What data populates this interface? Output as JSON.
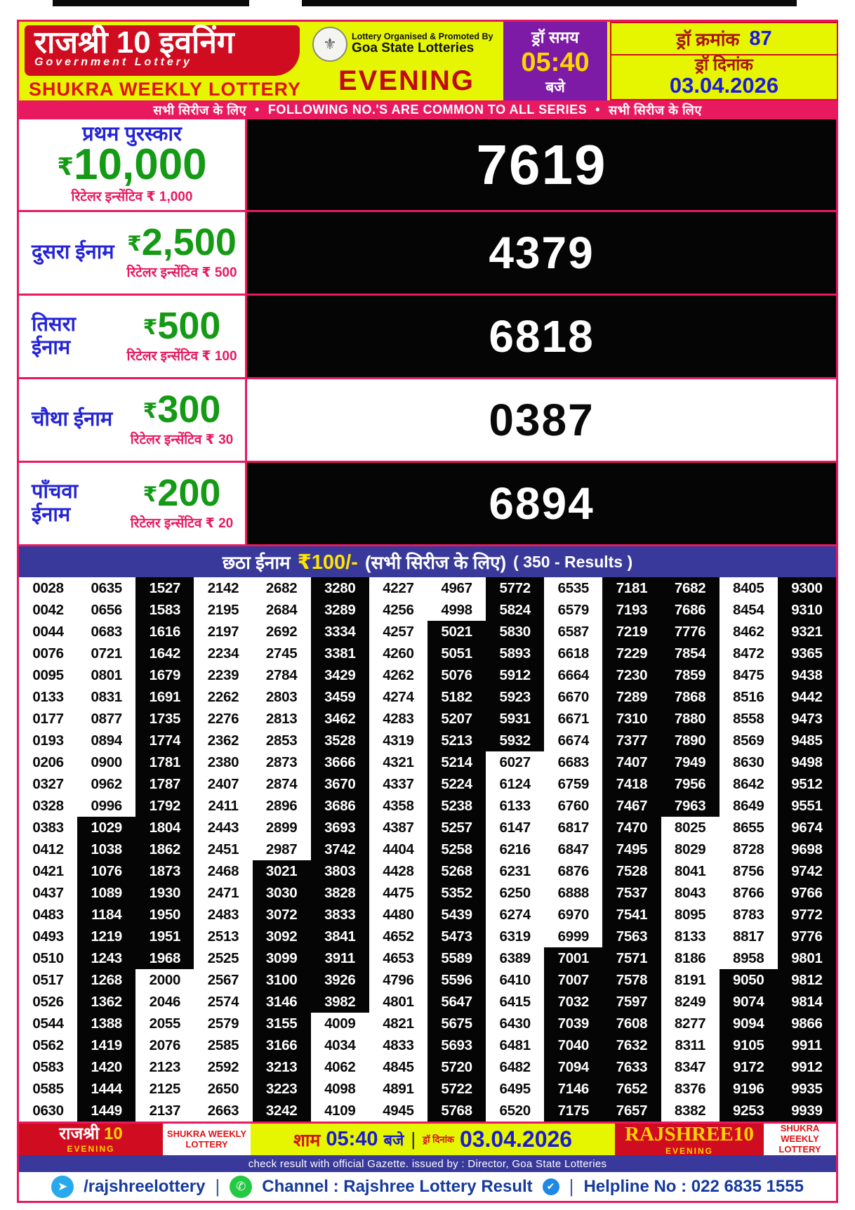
{
  "currency": "₹",
  "header": {
    "brand_title": "राजश्री 10 इवनिंग",
    "brand_subtitle": "Government Lottery",
    "weekly_name": "SHUKRA WEEKLY LOTTERY",
    "organiser_line1": "Lottery Organised & Promoted By",
    "organiser_line2": "Goa State Lotteries",
    "session": "EVENING",
    "draw_time_label": "ड्रॉ समय",
    "draw_time": "05:40",
    "draw_time_suffix": "बजे",
    "draw_no_label": "ड्रॉ क्रमांक",
    "draw_no": "87",
    "draw_date_label": "ड्रॉ दिनांक",
    "draw_date": "03.04.2026"
  },
  "series_strip": {
    "left": "सभी सिरीज के लिए",
    "bullet": "•",
    "center": "FOLLOWING NO.'S ARE COMMON TO ALL SERIES",
    "right": "सभी सिरीज के लिए"
  },
  "prizes": [
    {
      "title": "प्रथम पुरस्कार",
      "amount": "10,000",
      "retailer": "रिटेलर इन्सेंटिव ₹ 1,000",
      "number": "7619",
      "highlighted": true
    },
    {
      "title": "दुसरा ईनाम",
      "amount": "2,500",
      "retailer": "रिटेलर इन्सेंटिव ₹ 500",
      "number": "4379",
      "highlighted": true
    },
    {
      "title": "तिसरा ईनाम",
      "amount": "500",
      "retailer": "रिटेलर इन्सेंटिव ₹ 100",
      "number": "6818",
      "highlighted": true
    },
    {
      "title": "चौथा ईनाम",
      "amount": "300",
      "retailer": "रिटेलर इन्सेंटिव ₹ 30",
      "number": "0387",
      "highlighted": false
    },
    {
      "title": "पाँचवा ईनाम",
      "amount": "200",
      "retailer": "रिटेलर इन्सेंटिव ₹ 20",
      "number": "6894",
      "highlighted": true
    }
  ],
  "sixth_prize": {
    "label": "छठा ईनाम",
    "amount": "₹100/-",
    "series_note": "(सभी सिरीज के लिए)",
    "results_note": "( 350 - Results )"
  },
  "results": {
    "rows": [
      [
        "0028",
        "0635",
        "1527",
        "2142",
        "2682",
        "3280",
        "4227",
        "4967",
        "5772",
        "6535",
        "7181",
        "7682",
        "8405",
        "9300"
      ],
      [
        "0042",
        "0656",
        "1583",
        "2195",
        "2684",
        "3289",
        "4256",
        "4998",
        "5824",
        "6579",
        "7193",
        "7686",
        "8454",
        "9310"
      ],
      [
        "0044",
        "0683",
        "1616",
        "2197",
        "2692",
        "3334",
        "4257",
        "5021",
        "5830",
        "6587",
        "7219",
        "7776",
        "8462",
        "9321"
      ],
      [
        "0076",
        "0721",
        "1642",
        "2234",
        "2745",
        "3381",
        "4260",
        "5051",
        "5893",
        "6618",
        "7229",
        "7854",
        "8472",
        "9365"
      ],
      [
        "0095",
        "0801",
        "1679",
        "2239",
        "2784",
        "3429",
        "4262",
        "5076",
        "5912",
        "6664",
        "7230",
        "7859",
        "8475",
        "9438"
      ],
      [
        "0133",
        "0831",
        "1691",
        "2262",
        "2803",
        "3459",
        "4274",
        "5182",
        "5923",
        "6670",
        "7289",
        "7868",
        "8516",
        "9442"
      ],
      [
        "0177",
        "0877",
        "1735",
        "2276",
        "2813",
        "3462",
        "4283",
        "5207",
        "5931",
        "6671",
        "7310",
        "7880",
        "8558",
        "9473"
      ],
      [
        "0193",
        "0894",
        "1774",
        "2362",
        "2853",
        "3528",
        "4319",
        "5213",
        "5932",
        "6674",
        "7377",
        "7890",
        "8569",
        "9485"
      ],
      [
        "0206",
        "0900",
        "1781",
        "2380",
        "2873",
        "3666",
        "4321",
        "5214",
        "6027",
        "6683",
        "7407",
        "7949",
        "8630",
        "9498"
      ],
      [
        "0327",
        "0962",
        "1787",
        "2407",
        "2874",
        "3670",
        "4337",
        "5224",
        "6124",
        "6759",
        "7418",
        "7956",
        "8642",
        "9512"
      ],
      [
        "0328",
        "0996",
        "1792",
        "2411",
        "2896",
        "3686",
        "4358",
        "5238",
        "6133",
        "6760",
        "7467",
        "7963",
        "8649",
        "9551"
      ],
      [
        "0383",
        "1029",
        "1804",
        "2443",
        "2899",
        "3693",
        "4387",
        "5257",
        "6147",
        "6817",
        "7470",
        "8025",
        "8655",
        "9674"
      ],
      [
        "0412",
        "1038",
        "1862",
        "2451",
        "2987",
        "3742",
        "4404",
        "5258",
        "6216",
        "6847",
        "7495",
        "8029",
        "8728",
        "9698"
      ],
      [
        "0421",
        "1076",
        "1873",
        "2468",
        "3021",
        "3803",
        "4428",
        "5268",
        "6231",
        "6876",
        "7528",
        "8041",
        "8756",
        "9742"
      ],
      [
        "0437",
        "1089",
        "1930",
        "2471",
        "3030",
        "3828",
        "4475",
        "5352",
        "6250",
        "6888",
        "7537",
        "8043",
        "8766",
        "9766"
      ],
      [
        "0483",
        "1184",
        "1950",
        "2483",
        "3072",
        "3833",
        "4480",
        "5439",
        "6274",
        "6970",
        "7541",
        "8095",
        "8783",
        "9772"
      ],
      [
        "0493",
        "1219",
        "1951",
        "2513",
        "3092",
        "3841",
        "4652",
        "5473",
        "6319",
        "6999",
        "7563",
        "8133",
        "8817",
        "9776"
      ],
      [
        "0510",
        "1243",
        "1968",
        "2525",
        "3099",
        "3911",
        "4653",
        "5589",
        "6389",
        "7001",
        "7571",
        "8186",
        "8958",
        "9801"
      ],
      [
        "0517",
        "1268",
        "2000",
        "2567",
        "3100",
        "3926",
        "4796",
        "5596",
        "6410",
        "7007",
        "7578",
        "8191",
        "9050",
        "9812"
      ],
      [
        "0526",
        "1362",
        "2046",
        "2574",
        "3146",
        "3982",
        "4801",
        "5647",
        "6415",
        "7032",
        "7597",
        "8249",
        "9074",
        "9814"
      ],
      [
        "0544",
        "1388",
        "2055",
        "2579",
        "3155",
        "4009",
        "4821",
        "5675",
        "6430",
        "7039",
        "7608",
        "8277",
        "9094",
        "9866"
      ],
      [
        "0562",
        "1419",
        "2076",
        "2585",
        "3166",
        "4034",
        "4833",
        "5693",
        "6481",
        "7040",
        "7632",
        "8311",
        "9105",
        "9911"
      ],
      [
        "0583",
        "1420",
        "2123",
        "2592",
        "3213",
        "4062",
        "4845",
        "5720",
        "6482",
        "7094",
        "7633",
        "8347",
        "9172",
        "9912"
      ],
      [
        "0585",
        "1444",
        "2125",
        "2650",
        "3223",
        "4098",
        "4891",
        "5722",
        "6495",
        "7146",
        "7652",
        "8376",
        "9196",
        "9935"
      ],
      [
        "0630",
        "1449",
        "2137",
        "2663",
        "3242",
        "4109",
        "4945",
        "5768",
        "6520",
        "7175",
        "7657",
        "8382",
        "9253",
        "9939"
      ]
    ]
  },
  "footer": {
    "left_brand": "राजश्री",
    "left_brand_num": "10",
    "left_session": "EVENING",
    "left_weekly": "SHUKRA WEEKLY LOTTERY",
    "time_prefix": "शाम",
    "time": "05:40",
    "time_suffix": "बजे",
    "divider": "|",
    "date_label": "ड्रॉ दिनांक",
    "date": "03.04.2026",
    "right_brand": "RAJSHREE",
    "right_brand_num": "10",
    "right_session": "EVENING",
    "right_weekly": "SHUKRA WEEKLY LOTTERY",
    "gazette": "check result with official Gazette. issued by : Director, Goa State Lotteries",
    "telegram_handle": "/rajshreelottery",
    "channel": "Channel : Rajshree Lottery Result",
    "helpline": "Helpline No : 022 6835 1555"
  },
  "colors": {
    "red": "#d00d20",
    "yellow_green": "#e6f600",
    "purple": "#7e1ba6",
    "pink": "#e8195f",
    "navy": "#39399b",
    "green": "#149a14",
    "blue": "#1b1bdb",
    "highlight_black": "#050505"
  }
}
